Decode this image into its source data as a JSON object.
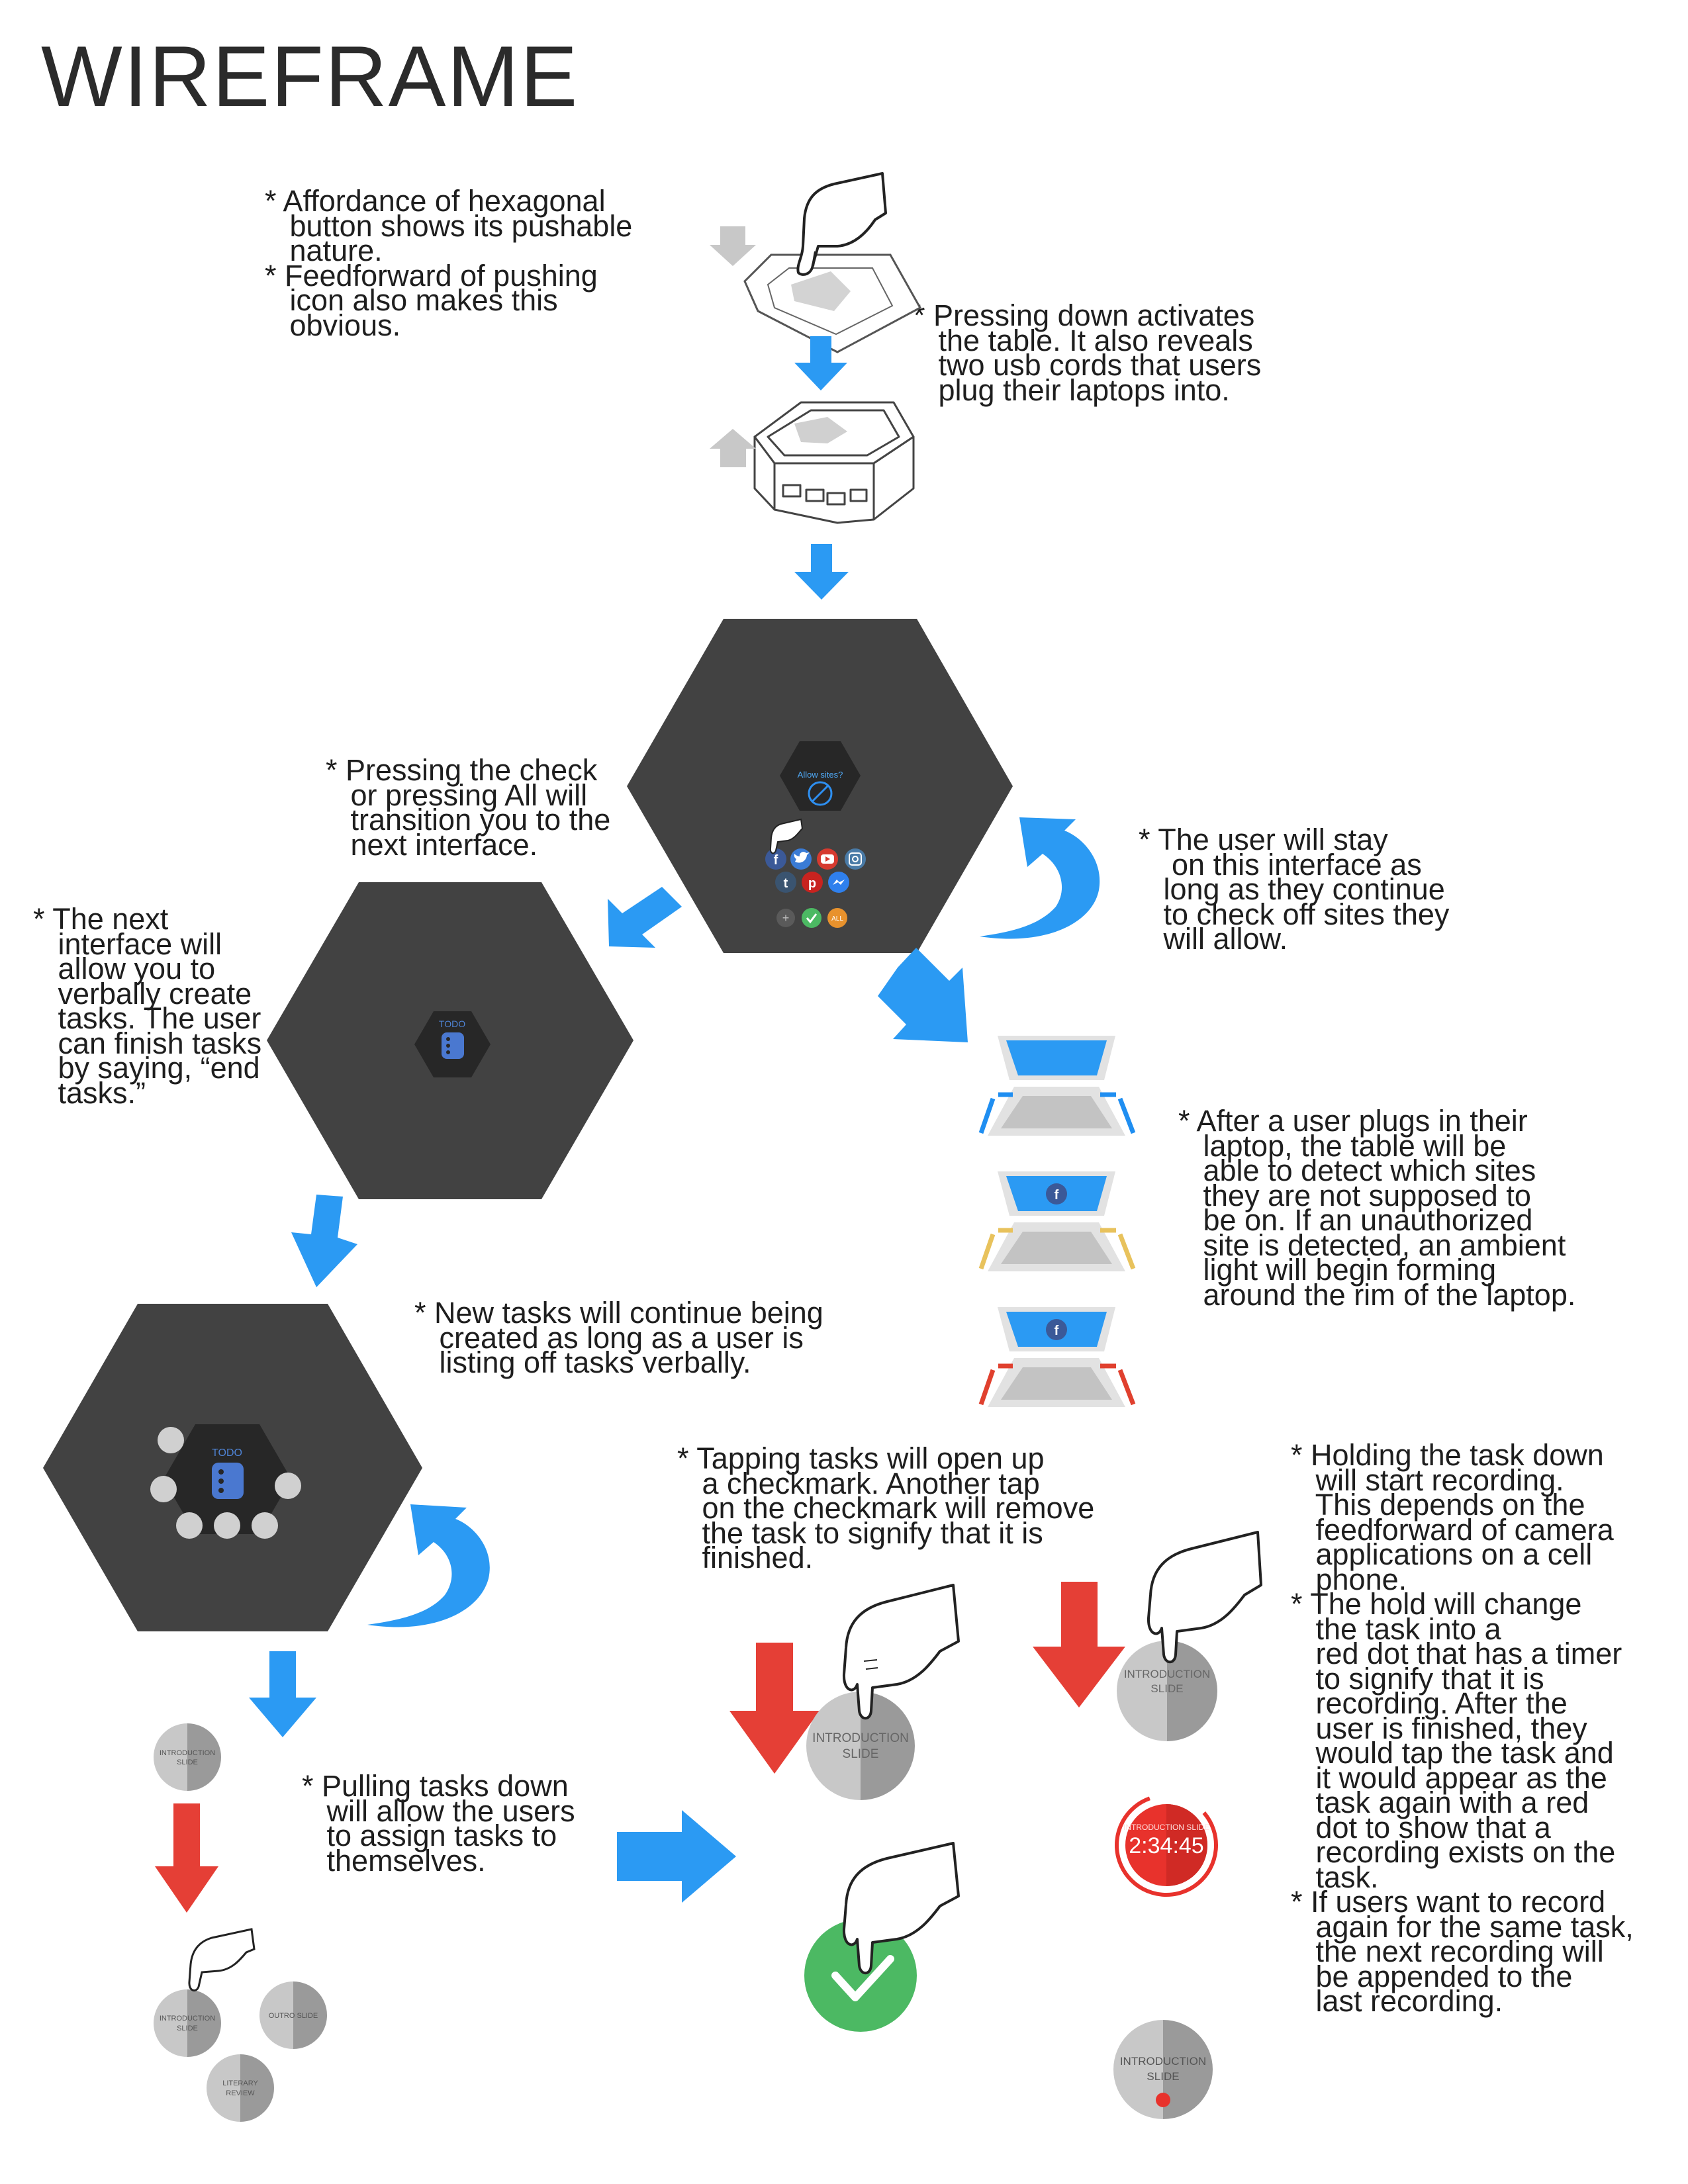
{
  "title": "WIREFRAME",
  "notes": {
    "affordance": "* Affordance of hexagonal\n   button shows its pushable\n   nature.\n* Feedforward of pushing\n   icon also makes this\n   obvious.",
    "pressing_down": "* Pressing down activates\n   the table. It also reveals\n   two usb cords that users\n   plug their laptops into.",
    "pressing_check": "* Pressing the check\n   or pressing All will\n   transition you to the\n   next interface.",
    "user_stay": "* The user will stay\n    on this interface as\n   long as they continue\n   to check off sites they\n   will allow.",
    "next_interface": "* The next\n   interface will\n   allow you to\n   verbally create\n   tasks. The user\n   can finish tasks\n   by saying, “end\n   tasks.”",
    "plugs_in": "* After a user plugs in their\n   laptop, the table will be\n   able to detect which sites\n   they are not supposed to\n   be on. If an unauthorized\n   site is detected, an ambient\n   light will begin forming\n   around the rim of the laptop.",
    "new_tasks": "* New tasks will continue being\n   created as long as a user is\n   listing off tasks verbally.",
    "tapping": "* Tapping tasks will open up\n   a checkmark. Another tap\n   on the checkmark will remove\n   the task to signify that it is\n   finished.",
    "holding": "* Holding the task down\n   will start recording.\n   This depends on the\n   feedforward of camera\n   applications on a cell\n   phone.\n* The hold will change\n   the task into a\n   red dot that has a timer\n   to signify that it is\n   recording. After the\n   user is finished, they\n   would tap the task and\n   it would appear as the\n   task again with a red\n   dot to show that a\n   recording exists on the\n   task.\n* If users want to record\n   again for the same task,\n   the next recording will\n   be appended to the\n   last recording.",
    "pulling": "* Pulling tasks down\n   will allow the users\n   to assign tasks to\n   themselves."
  },
  "screens": {
    "allow_sites": {
      "prompt": "Allow sites?",
      "site_icons": [
        "facebook-icon",
        "twitter-icon",
        "youtube-icon",
        "instagram-icon",
        "tumblr-icon",
        "pinterest-icon",
        "messenger-icon"
      ],
      "all_label": "ALL"
    },
    "todo_small": {
      "label": "TODO"
    },
    "todo_large": {
      "label": "TODO"
    }
  },
  "tasks": {
    "introduction_line1": "INTRODUCTION",
    "introduction_line2": "SLIDE",
    "outro": "OUTRO SLIDE",
    "literary_line1": "LITERARY",
    "literary_line2": "REVIEW",
    "recording_label": "INTRODUCTION SLIDE",
    "timer": "2:34:45"
  },
  "colors": {
    "hex_dark": "#424242",
    "blue_arrow": "#2b9af3",
    "red_arrow": "#e53f36",
    "check_green": "#4cb963",
    "rec_red": "#e8322c",
    "light_blue": "#1f8ef1",
    "light_yellow": "#e8c25c",
    "light_red": "#e0402e"
  }
}
